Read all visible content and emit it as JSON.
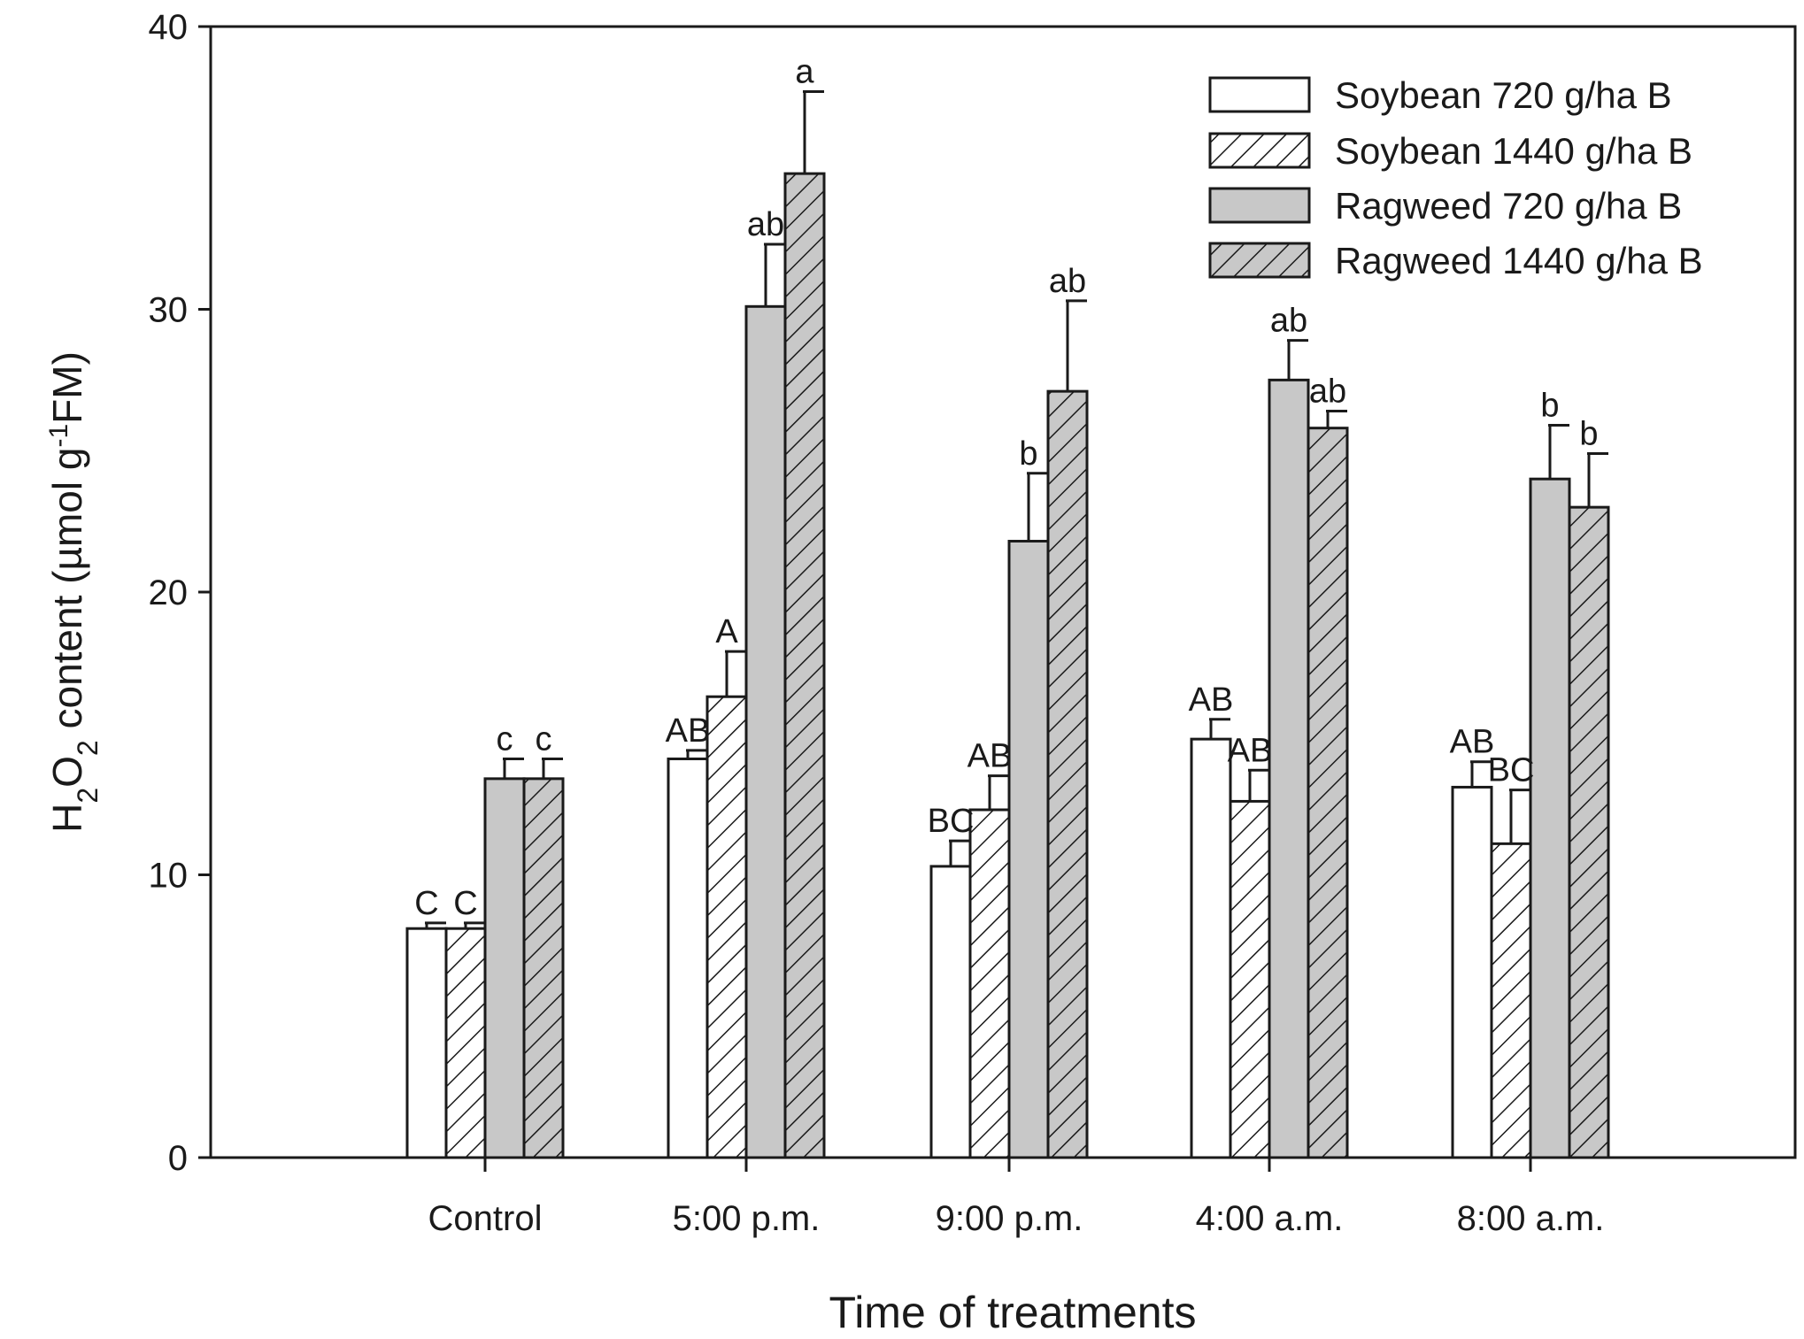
{
  "chart_data": {
    "type": "bar",
    "title": "",
    "xlabel": "Time of treatments",
    "ylabel": {
      "main": "H",
      "sub1": "2",
      "mid": "O",
      "sub2": "2",
      "rest": " content (µmol g",
      "sup": "-1",
      "end": "FM)"
    },
    "ylim": [
      0,
      40
    ],
    "yticks": [
      "0",
      "10",
      "20",
      "30",
      "40"
    ],
    "categories": [
      "Control",
      "5:00 p.m.",
      "9:00 p.m.",
      "4:00 a.m.",
      "8:00 a.m."
    ],
    "legend_position": "top-right",
    "series": [
      {
        "name": "Soybean 720 g/ha B",
        "fill": "#ffffff",
        "hatch": false,
        "values": [
          8.1,
          14.1,
          10.3,
          14.8,
          13.1
        ],
        "errors": [
          0.2,
          0.3,
          0.9,
          0.7,
          0.9
        ],
        "labels": [
          "C",
          "AB",
          "BC",
          "AB",
          "AB"
        ]
      },
      {
        "name": "Soybean 1440 g/ha B",
        "fill": "#ffffff",
        "hatch": true,
        "values": [
          8.1,
          16.3,
          12.3,
          12.6,
          11.1
        ],
        "errors": [
          0.2,
          1.6,
          1.2,
          1.1,
          1.9
        ],
        "labels": [
          "C",
          "A",
          "AB",
          "AB",
          "BC"
        ]
      },
      {
        "name": "Ragweed 720 g/ha B",
        "fill": "#c8c8c8",
        "hatch": false,
        "values": [
          13.4,
          30.1,
          21.8,
          27.5,
          24.0
        ],
        "errors": [
          0.7,
          2.2,
          2.4,
          1.4,
          1.9
        ],
        "labels": [
          "c",
          "ab",
          "b",
          "ab",
          "b"
        ]
      },
      {
        "name": "Ragweed 1440 g/ha B",
        "fill": "#c8c8c8",
        "hatch": true,
        "values": [
          13.4,
          34.8,
          27.1,
          25.8,
          23.0
        ],
        "errors": [
          0.7,
          2.9,
          3.2,
          0.6,
          1.9
        ],
        "labels": [
          "c",
          "a",
          "ab",
          "ab",
          "b"
        ]
      }
    ]
  }
}
